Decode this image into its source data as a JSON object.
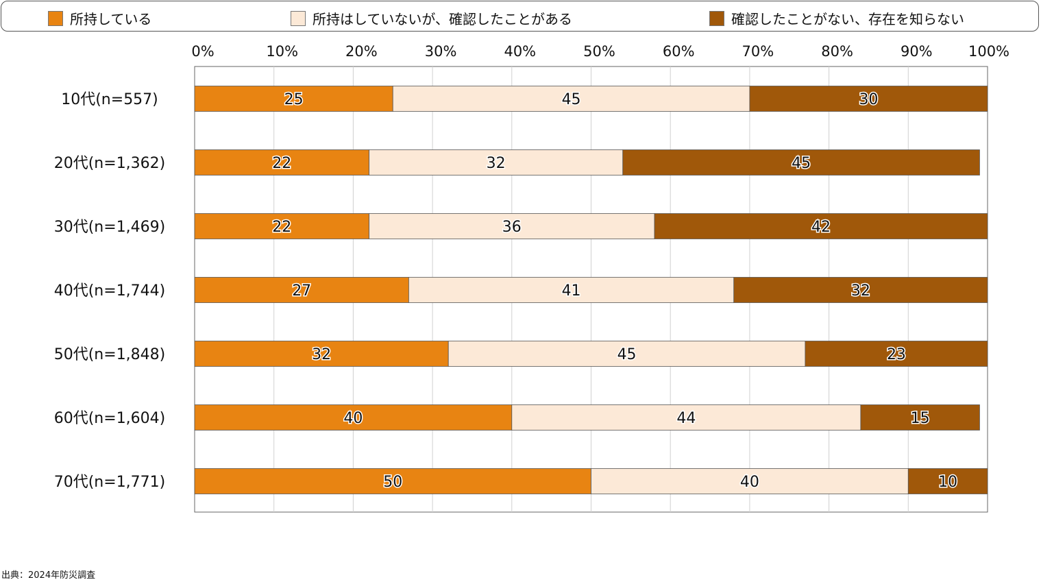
{
  "chart_data": {
    "type": "bar",
    "orientation": "horizontal",
    "stacked": true,
    "categories": [
      "10代(n=557)",
      "20代(n=1,362)",
      "30代(n=1,469)",
      "40代(n=1,744)",
      "50代(n=1,848)",
      "60代(n=1,604)",
      "70代(n=1,771)"
    ],
    "series": [
      {
        "name": "所持している",
        "color": "#E88412",
        "values": [
          25,
          22,
          22,
          27,
          32,
          40,
          50
        ]
      },
      {
        "name": "所持はしていないが、確認したことがある",
        "color": "#FCE9D7",
        "values": [
          45,
          32,
          36,
          41,
          45,
          44,
          40
        ]
      },
      {
        "name": "確認したことがない、存在を知らない",
        "color": "#A0580A",
        "values": [
          30,
          45,
          42,
          32,
          23,
          15,
          10
        ]
      }
    ],
    "xlim": [
      0,
      100
    ],
    "xticks": [
      "0%",
      "10%",
      "20%",
      "30%",
      "40%",
      "50%",
      "60%",
      "70%",
      "80%",
      "90%",
      "100%"
    ],
    "grid": true,
    "legend": "top"
  },
  "source": "出典：2024年防災調査"
}
